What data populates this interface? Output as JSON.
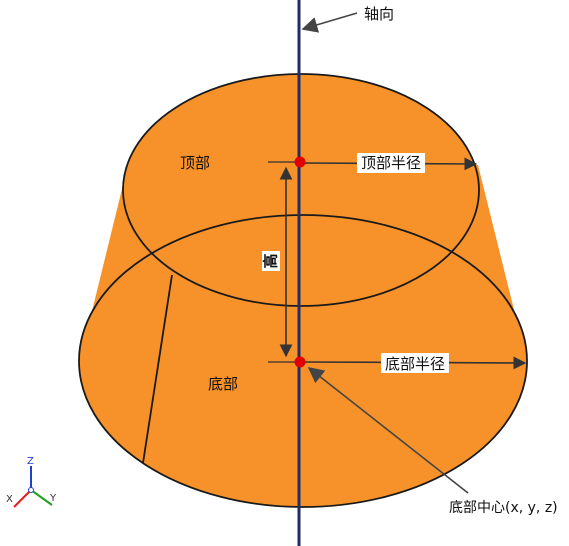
{
  "labels": {
    "axis": "轴向",
    "top": "顶部",
    "top_radius": "顶部半径",
    "height": "高",
    "bottom": "底部",
    "bottom_radius": "底部半径",
    "bottom_center": "底部中心(x, y, z)"
  },
  "triad": {
    "x": "X",
    "y": "Y",
    "z": "Z"
  },
  "colors": {
    "fill": "#F7922A",
    "stroke": "#1a1a1a",
    "axis": "#1f2d6b",
    "point": "#e00000",
    "triad_x": "#e02020",
    "triad_y": "#20a020",
    "triad_z": "#2040d0"
  }
}
